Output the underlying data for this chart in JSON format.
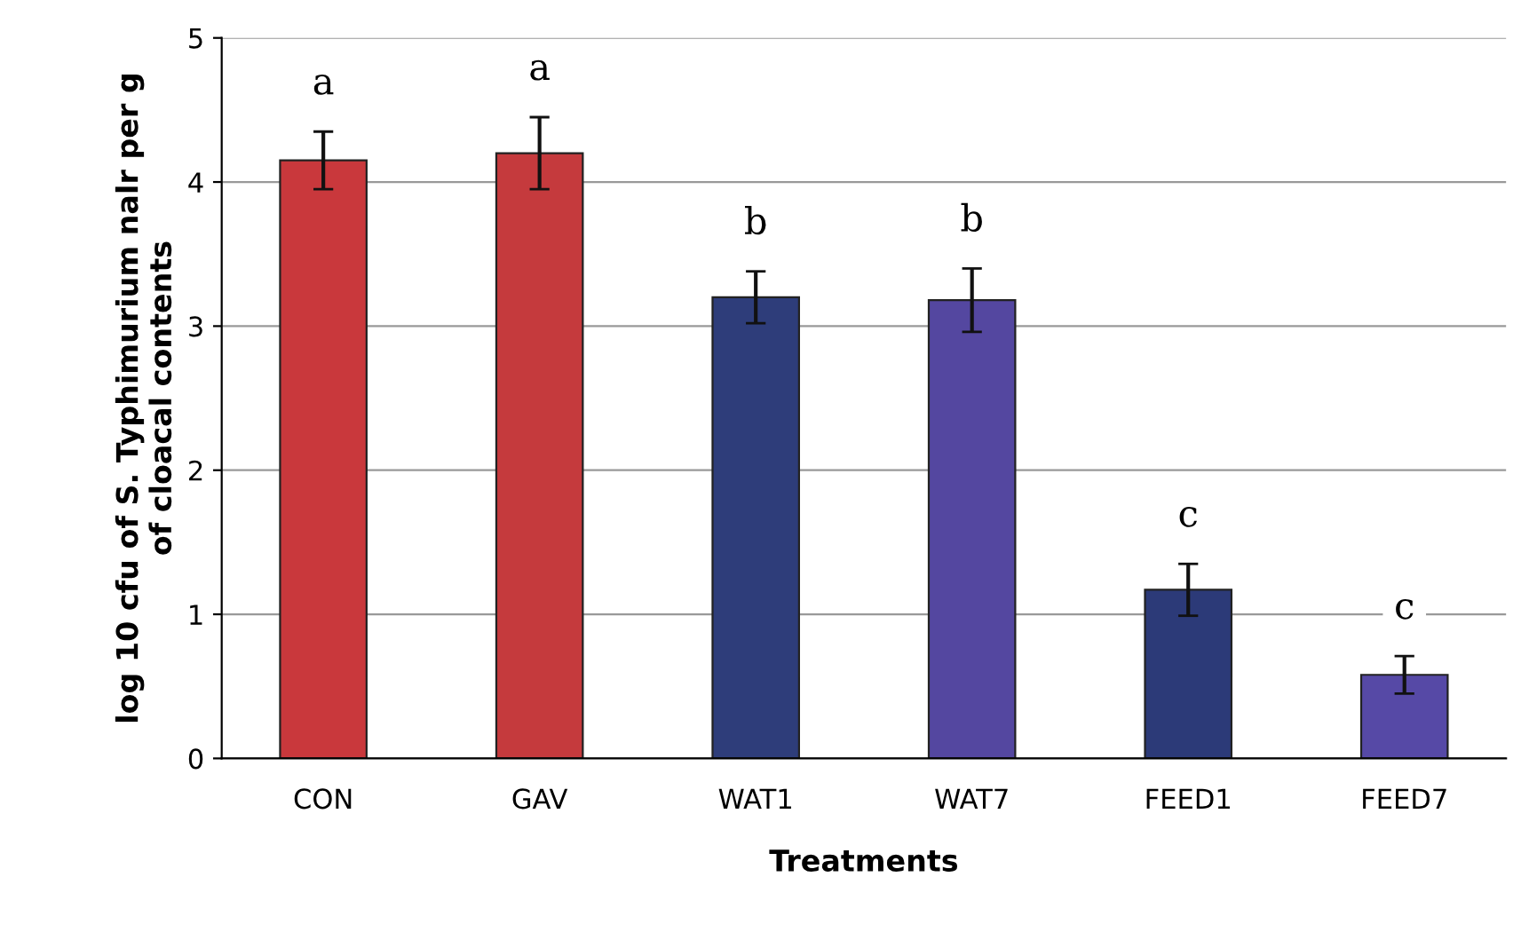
{
  "chart_data": {
    "type": "bar",
    "xlabel": "Treatments",
    "ylabel": "log 10 cfu of S. Typhimurium nalr per g\nof cloacal contents",
    "categories": [
      "CON",
      "GAV",
      "WAT1",
      "WAT7",
      "FEED1",
      "FEED7"
    ],
    "values": [
      4.15,
      4.2,
      3.2,
      3.18,
      1.17,
      0.58
    ],
    "errors": [
      0.2,
      0.25,
      0.18,
      0.22,
      0.18,
      0.13
    ],
    "colors": [
      "#c9383c",
      "#c53a3d",
      "#2e3d7a",
      "#5447a0",
      "#2c3a78",
      "#5649a6"
    ],
    "ylim": [
      0,
      5
    ],
    "yticks": [
      0,
      1,
      2,
      3,
      4,
      5
    ],
    "grid": "y",
    "annotations": [
      "a",
      "a",
      "b",
      "b",
      "c",
      "c"
    ]
  }
}
